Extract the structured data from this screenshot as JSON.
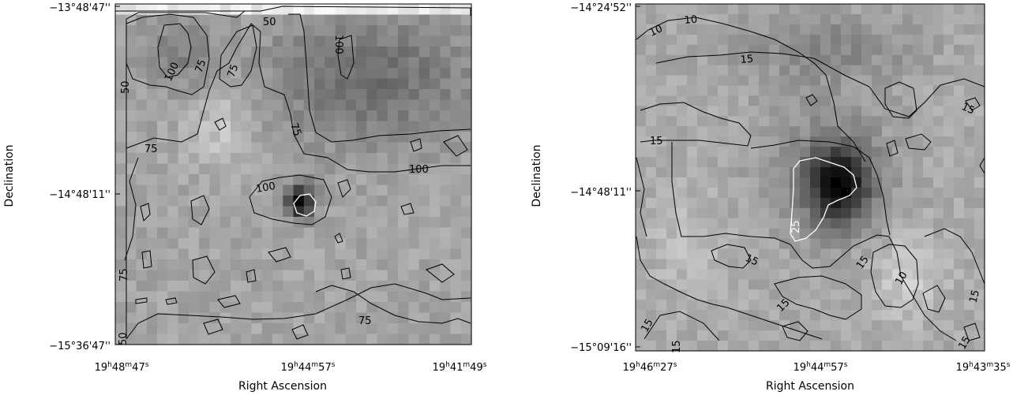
{
  "colors": {
    "background": "#ffffff",
    "frame": "#000000",
    "contour": "#000000",
    "contour_highlight": "#ffffff"
  },
  "panels": [
    {
      "xlabel": "Right Ascension",
      "ylabel": "Declination",
      "x_ticks": [
        {
          "h": "19",
          "m": "48",
          "s": "47"
        },
        {
          "h": "19",
          "m": "44",
          "s": "57"
        },
        {
          "h": "19",
          "m": "41",
          "s": "49"
        }
      ],
      "y_ticks": [
        "−13°48'47''",
        "−14°48'11''",
        "−15°36'47''"
      ],
      "contour_labels": [
        "50",
        "100",
        "75",
        "75",
        "100",
        "75",
        "50",
        "75",
        "100",
        "100",
        "75",
        "50",
        "75"
      ],
      "highlight_label": ""
    },
    {
      "xlabel": "Right Ascension",
      "ylabel": "Declination",
      "x_ticks": [
        {
          "h": "19",
          "m": "46",
          "s": "27"
        },
        {
          "h": "19",
          "m": "44",
          "s": "57"
        },
        {
          "h": "19",
          "m": "43",
          "s": "35"
        }
      ],
      "y_ticks": [
        "−14°24'52''",
        "−14°48'11''",
        "−15°09'16''"
      ],
      "contour_labels": [
        "10",
        "10",
        "15",
        "15",
        "15",
        "15",
        "15",
        "10",
        "15",
        "15",
        "15",
        "15",
        "15"
      ],
      "highlight_label": "25"
    }
  ]
}
